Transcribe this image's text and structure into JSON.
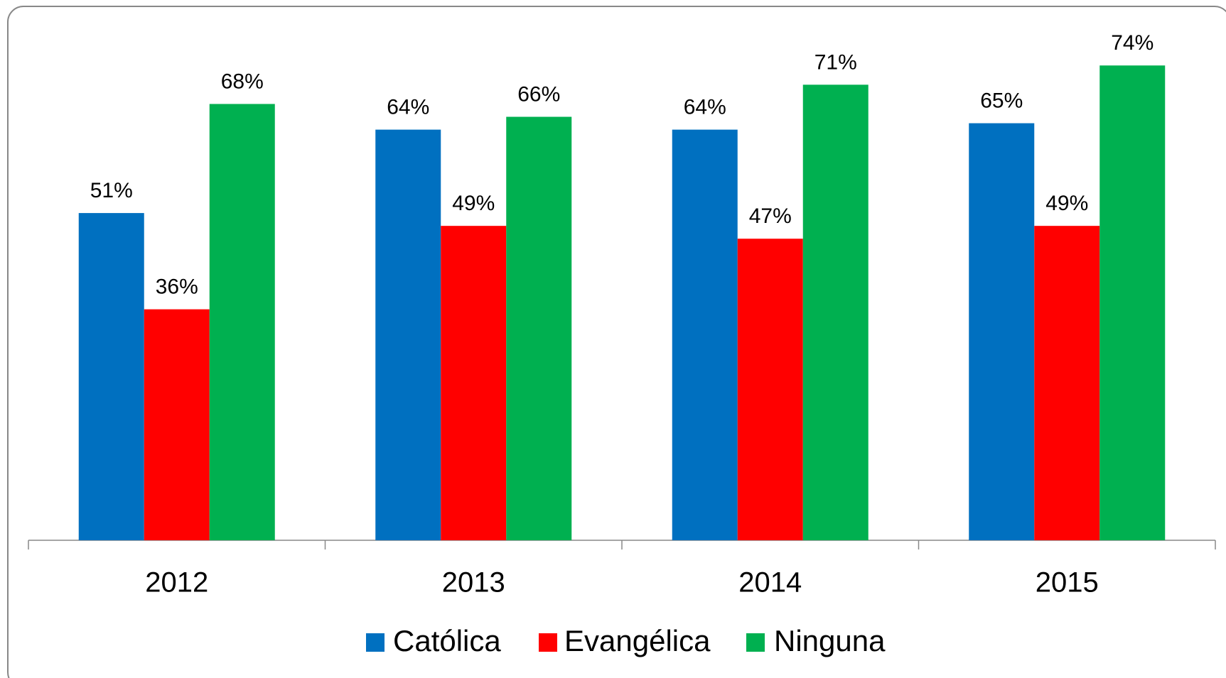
{
  "chart_data": {
    "type": "bar",
    "categories": [
      "2012",
      "2013",
      "2014",
      "2015"
    ],
    "series": [
      {
        "name": "Católica",
        "color": "#0070c0",
        "values": [
          51,
          64,
          64,
          65
        ],
        "value_labels": [
          "51%",
          "64%",
          "64%",
          "65%"
        ]
      },
      {
        "name": "Evangélica",
        "color": "#ff0000",
        "values": [
          36,
          49,
          47,
          49
        ],
        "value_labels": [
          "36%",
          "49%",
          "47%",
          "49%"
        ]
      },
      {
        "name": "Ninguna",
        "color": "#00b050",
        "values": [
          68,
          66,
          71,
          74
        ],
        "value_labels": [
          "68%",
          "66%",
          "71%",
          "74%"
        ]
      }
    ],
    "ylim": [
      0,
      80
    ],
    "legend": "bottom"
  }
}
